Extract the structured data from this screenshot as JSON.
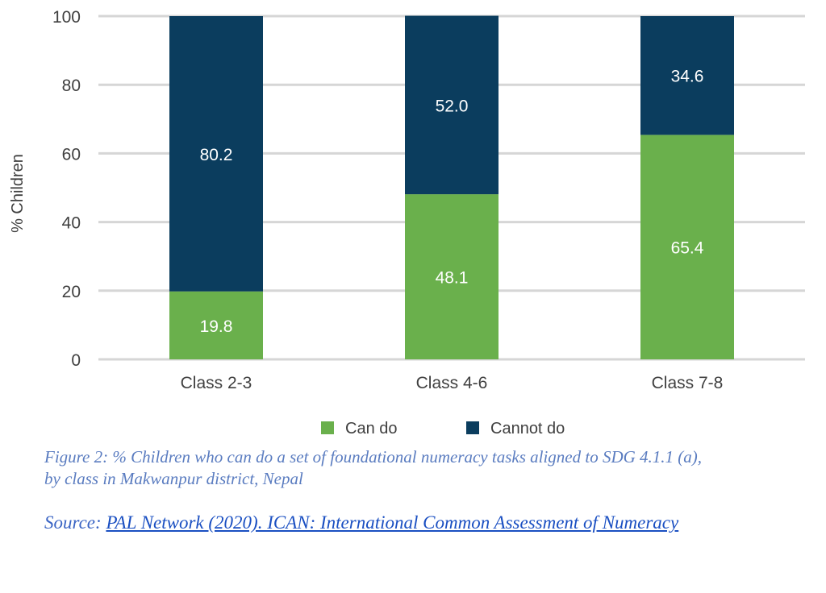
{
  "chart_data": {
    "type": "bar",
    "stacked": true,
    "title": "",
    "xlabel": "",
    "ylabel": "% Children",
    "ylim": [
      0,
      100
    ],
    "yticks": [
      0,
      20,
      40,
      60,
      80,
      100
    ],
    "grid": true,
    "categories": [
      "Class 2-3",
      "Class 4-6",
      "Class 7-8"
    ],
    "series": [
      {
        "name": "Can do",
        "color": "#6ab04c",
        "values": [
          19.8,
          48.1,
          65.4
        ],
        "labels": [
          "19.8",
          "48.1",
          "65.4"
        ]
      },
      {
        "name": "Cannot do",
        "color": "#0b3d5e",
        "values": [
          80.2,
          52.0,
          34.6
        ],
        "labels": [
          "80.2",
          "52.0",
          "34.6"
        ]
      }
    ],
    "legend_position": "bottom"
  },
  "caption": {
    "line1": "Figure 2: % Children who can do a set of foundational numeracy tasks aligned to SDG 4.1.1 (a),",
    "line2": "by class in Makwanpur district, Nepal"
  },
  "source": {
    "prefix": "Source: ",
    "link_text": "PAL Network (2020). ICAN: International Common Assessment of Numeracy"
  }
}
